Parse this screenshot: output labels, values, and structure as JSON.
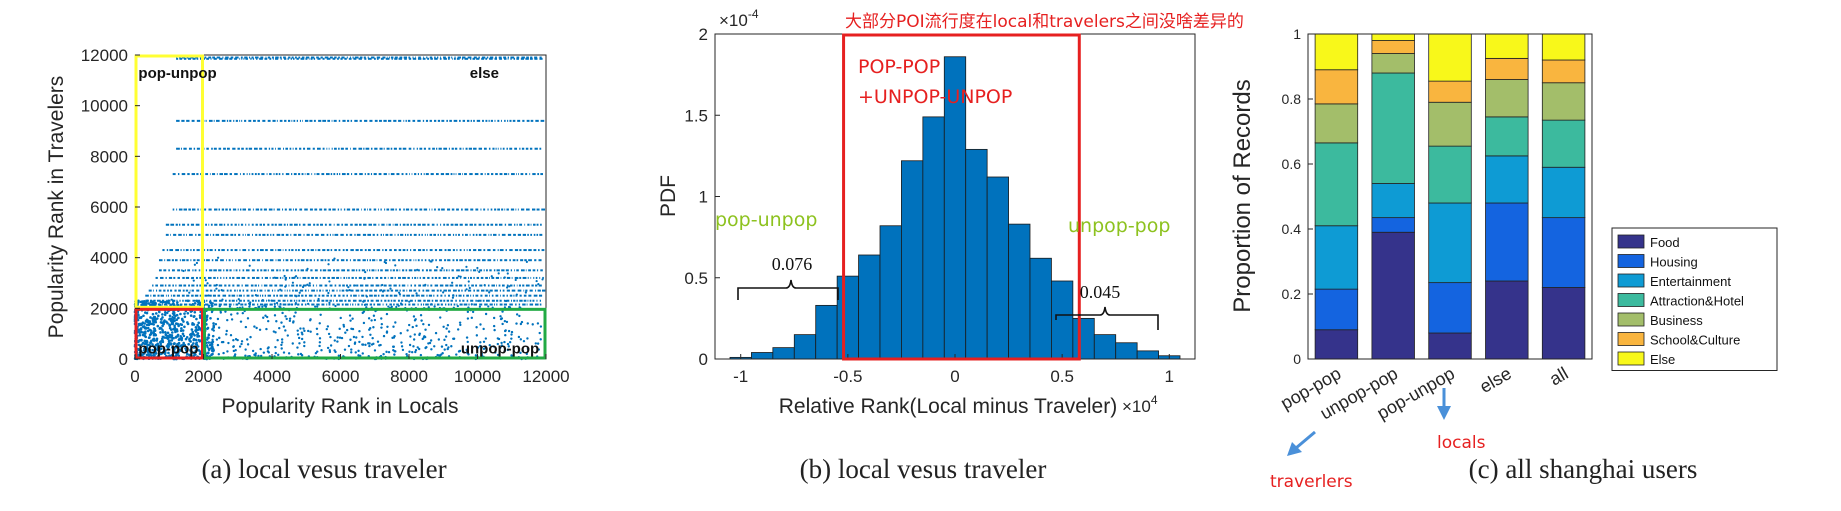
{
  "chart_data": [
    {
      "type": "scatter",
      "caption": "(a)  local vesus traveler",
      "xlabel": "Popularity Rank in Locals",
      "ylabel": "Popularity Rank in Travelers",
      "xlim": [
        0,
        12000
      ],
      "ylim": [
        0,
        12000
      ],
      "xticks": [
        "0",
        "2000",
        "4000",
        "6000",
        "8000",
        "10000",
        "12000"
      ],
      "yticks": [
        "0",
        "2000",
        "4000",
        "6000",
        "8000",
        "10000",
        "12000"
      ],
      "grid": false,
      "point_color": "#0072BD",
      "band_rows": [
        {
          "y": 11900,
          "x_start": 1200
        },
        {
          "y": 11850,
          "x_start": 1200
        },
        {
          "y": 9400,
          "x_start": 1200
        },
        {
          "y": 8300,
          "x_start": 1200
        },
        {
          "y": 7300,
          "x_start": 1100
        },
        {
          "y": 5900,
          "x_start": 1100
        },
        {
          "y": 5300,
          "x_start": 900
        },
        {
          "y": 4900,
          "x_start": 900
        },
        {
          "y": 4300,
          "x_start": 800
        },
        {
          "y": 3900,
          "x_start": 700
        },
        {
          "y": 3500,
          "x_start": 700
        },
        {
          "y": 3200,
          "x_start": 600
        },
        {
          "y": 2900,
          "x_start": 500
        },
        {
          "y": 2700,
          "x_start": 400
        },
        {
          "y": 2500,
          "x_start": 300
        },
        {
          "y": 2300,
          "x_start": 300
        },
        {
          "y": 2150,
          "x_start": 300
        }
      ],
      "regions": [
        {
          "label": "pop-unpop",
          "x": [
            0,
            2000
          ],
          "y": [
            2000,
            12000
          ],
          "color": "#FFFF33"
        },
        {
          "label": "pop-pop",
          "x": [
            0,
            2000
          ],
          "y": [
            0,
            2000
          ],
          "color": "#E62020"
        },
        {
          "label": "unpop-pop",
          "x": [
            2000,
            12000
          ],
          "y": [
            0,
            2000
          ],
          "color": "#22AA44"
        },
        {
          "label": "else",
          "x": [
            2000,
            12000
          ],
          "y": [
            2000,
            12000
          ],
          "color": null
        }
      ]
    },
    {
      "type": "bar",
      "subtype": "histogram",
      "caption": "(b)  local vesus traveler",
      "xlabel": "Relative Rank(Local minus Traveler)",
      "x_exponent": "×10^4",
      "ylabel": "PDF",
      "y_exponent": "×10^-4",
      "xlim": [
        -1.12,
        1.12
      ],
      "ylim": [
        0,
        2
      ],
      "xticks": [
        "-1",
        "-0.5",
        "0",
        "0.5",
        "1"
      ],
      "yticks": [
        "0",
        "0.5",
        "1",
        "1.5",
        "2"
      ],
      "bar_color": "#0072BD",
      "bin_width": 0.1,
      "bin_left_edges": [
        -1.05,
        -0.95,
        -0.85,
        -0.75,
        -0.65,
        -0.55,
        -0.45,
        -0.35,
        -0.25,
        -0.15,
        -0.05,
        0.05,
        0.15,
        0.25,
        0.35,
        0.45,
        0.55,
        0.65,
        0.75,
        0.85,
        0.95
      ],
      "values": [
        0.01,
        0.04,
        0.07,
        0.15,
        0.33,
        0.51,
        0.64,
        0.82,
        1.22,
        1.49,
        1.86,
        1.29,
        1.12,
        0.83,
        0.62,
        0.48,
        0.25,
        0.15,
        0.1,
        0.05,
        0.02
      ],
      "annotations": {
        "title_note": "大部分POI流行度在local和travelers之间没啥差异的",
        "box_label_1": "POP-POP",
        "box_label_2": "+UNPOP-UNPOP",
        "box_range": [
          -0.52,
          0.58
        ],
        "left_label": "pop-unpop",
        "right_label": "unpop-pop",
        "left_value": "0.076",
        "right_value": "0.045"
      }
    },
    {
      "type": "bar",
      "subtype": "stacked",
      "caption": "(c)  all shanghai users",
      "ylabel": "Proportion of Records",
      "ylim": [
        0,
        1
      ],
      "yticks": [
        "0",
        "0.2",
        "0.4",
        "0.6",
        "0.8",
        "1"
      ],
      "categories": [
        "pop-pop",
        "unpop-pop",
        "pop-unpop",
        "else",
        "all"
      ],
      "legend_position": "lower-right",
      "series": [
        {
          "name": "Food",
          "color": "#35338B",
          "values": [
            0.09,
            0.39,
            0.08,
            0.24,
            0.22
          ]
        },
        {
          "name": "Housing",
          "color": "#1464E0",
          "values": [
            0.125,
            0.045,
            0.155,
            0.24,
            0.215
          ]
        },
        {
          "name": "Entertainment",
          "color": "#0E9BD4",
          "values": [
            0.195,
            0.105,
            0.245,
            0.145,
            0.155
          ]
        },
        {
          "name": "Attraction&Hotel",
          "color": "#3CBA9E",
          "values": [
            0.255,
            0.34,
            0.175,
            0.12,
            0.145
          ]
        },
        {
          "name": "Business",
          "color": "#A3BE6A",
          "values": [
            0.12,
            0.06,
            0.135,
            0.115,
            0.115
          ]
        },
        {
          "name": "School&Culture",
          "color": "#F9B53F",
          "values": [
            0.105,
            0.04,
            0.065,
            0.065,
            0.07
          ]
        },
        {
          "name": "Else",
          "color": "#F8F81A",
          "values": [
            0.11,
            0.02,
            0.145,
            0.075,
            0.08
          ]
        }
      ],
      "annotations": {
        "travelers_label": "traverlers",
        "locals_label": "locals",
        "arrow_color": "#4A90D9"
      }
    }
  ]
}
